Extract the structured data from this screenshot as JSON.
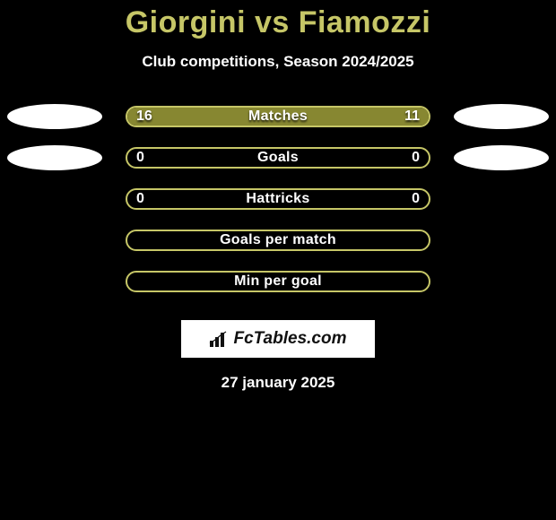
{
  "colors": {
    "background": "#000000",
    "accent": "#c6c667",
    "bar_fill": "#878731",
    "text_light": "#ffffff",
    "oval": "#ffffff",
    "logo_bg": "#ffffff",
    "logo_text": "#111111"
  },
  "header": {
    "title": "Giorgini vs Fiamozzi",
    "subtitle": "Club competitions, Season 2024/2025"
  },
  "rows": [
    {
      "label": "Matches",
      "left_value": "16",
      "right_value": "11",
      "fill_pct": 100,
      "show_left_oval": true,
      "show_right_oval": true,
      "show_values": true
    },
    {
      "label": "Goals",
      "left_value": "0",
      "right_value": "0",
      "fill_pct": 0,
      "show_left_oval": true,
      "show_right_oval": true,
      "show_values": true
    },
    {
      "label": "Hattricks",
      "left_value": "0",
      "right_value": "0",
      "fill_pct": 0,
      "show_left_oval": false,
      "show_right_oval": false,
      "show_values": true
    },
    {
      "label": "Goals per match",
      "left_value": "",
      "right_value": "",
      "fill_pct": 0,
      "show_left_oval": false,
      "show_right_oval": false,
      "show_values": false
    },
    {
      "label": "Min per goal",
      "left_value": "",
      "right_value": "",
      "fill_pct": 0,
      "show_left_oval": false,
      "show_right_oval": false,
      "show_values": false
    }
  ],
  "logo": {
    "text": "FcTables.com"
  },
  "footer": {
    "date": "27 january 2025"
  }
}
